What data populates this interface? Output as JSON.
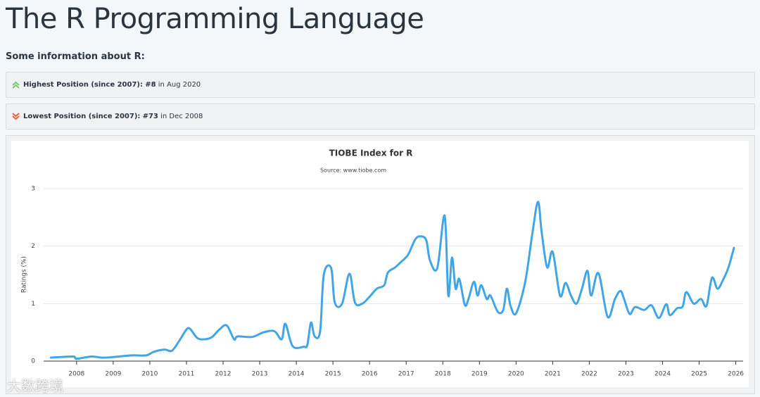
{
  "header": {
    "title": "The R Programming Language",
    "intro": "Some information about R:"
  },
  "info": [
    {
      "label": "Highest Position (since 2007):",
      "value": "#8",
      "detail": "in Aug 2020"
    },
    {
      "label": "Lowest Position (since 2007):",
      "value": "#73",
      "detail": "in Dec 2008"
    }
  ],
  "watermark": "大数跨境",
  "chart_data": {
    "type": "line",
    "title": "TIOBE Index for R",
    "subtitle": "Source: www.tiobe.com",
    "y_label": "Ratings (%)",
    "color": "#42a5e8",
    "grid": true,
    "xlim": [
      2007.1,
      2026.2
    ],
    "xticks": [
      2008,
      2009,
      2010,
      2011,
      2012,
      2013,
      2014,
      2015,
      2016,
      2017,
      2018,
      2019,
      2020,
      2021,
      2022,
      2023,
      2024,
      2025,
      2026
    ],
    "ylim": [
      0,
      3
    ],
    "yticks": [
      0,
      1,
      2,
      3
    ],
    "x": [
      2007.3,
      2007.9,
      2008.0,
      2008.4,
      2008.7,
      2009.0,
      2009.5,
      2009.9,
      2010.1,
      2010.4,
      2010.6,
      2010.8,
      2011.0,
      2011.1,
      2011.3,
      2011.5,
      2011.7,
      2011.9,
      2012.1,
      2012.3,
      2012.4,
      2012.8,
      2013.1,
      2013.4,
      2013.6,
      2013.7,
      2013.9,
      2014.2,
      2014.3,
      2014.4,
      2014.5,
      2014.65,
      2014.75,
      2014.95,
      2015.05,
      2015.25,
      2015.45,
      2015.6,
      2015.8,
      2016.0,
      2016.2,
      2016.4,
      2016.5,
      2016.7,
      2016.85,
      2017.05,
      2017.25,
      2017.4,
      2017.55,
      2017.65,
      2017.85,
      2018.05,
      2018.15,
      2018.25,
      2018.35,
      2018.45,
      2018.6,
      2018.7,
      2018.85,
      2018.95,
      2019.05,
      2019.2,
      2019.3,
      2019.5,
      2019.65,
      2019.75,
      2019.85,
      2020.0,
      2020.25,
      2020.45,
      2020.6,
      2020.7,
      2020.85,
      2021.0,
      2021.2,
      2021.35,
      2021.5,
      2021.65,
      2021.8,
      2021.95,
      2022.05,
      2022.25,
      2022.5,
      2022.7,
      2022.85,
      2022.95,
      2023.1,
      2023.25,
      2023.5,
      2023.7,
      2023.9,
      2024.1,
      2024.2,
      2024.4,
      2024.55,
      2024.65,
      2024.85,
      2025.05,
      2025.2,
      2025.35,
      2025.5,
      2025.65,
      2025.8,
      2025.95
    ],
    "values": [
      0.06,
      0.08,
      0.04,
      0.08,
      0.06,
      0.07,
      0.1,
      0.1,
      0.16,
      0.2,
      0.18,
      0.35,
      0.55,
      0.56,
      0.4,
      0.38,
      0.42,
      0.55,
      0.62,
      0.38,
      0.43,
      0.42,
      0.5,
      0.52,
      0.38,
      0.65,
      0.26,
      0.25,
      0.28,
      0.67,
      0.43,
      0.52,
      1.5,
      1.62,
      1.02,
      1.0,
      1.52,
      1.02,
      1.0,
      1.12,
      1.26,
      1.32,
      1.54,
      1.63,
      1.72,
      1.85,
      2.12,
      2.17,
      2.1,
      1.75,
      1.62,
      2.53,
      1.14,
      1.8,
      1.26,
      1.43,
      0.98,
      1.08,
      1.38,
      1.14,
      1.32,
      1.08,
      1.14,
      0.86,
      0.89,
      1.26,
      0.96,
      0.83,
      1.38,
      2.24,
      2.77,
      2.24,
      1.63,
      1.9,
      1.14,
      1.36,
      1.14,
      1.0,
      1.26,
      1.57,
      1.14,
      1.53,
      0.77,
      1.08,
      1.22,
      1.08,
      0.82,
      0.94,
      0.89,
      0.97,
      0.75,
      0.99,
      0.8,
      0.92,
      0.95,
      1.2,
      1.0,
      1.08,
      0.96,
      1.45,
      1.26,
      1.41,
      1.63,
      1.97
    ]
  }
}
